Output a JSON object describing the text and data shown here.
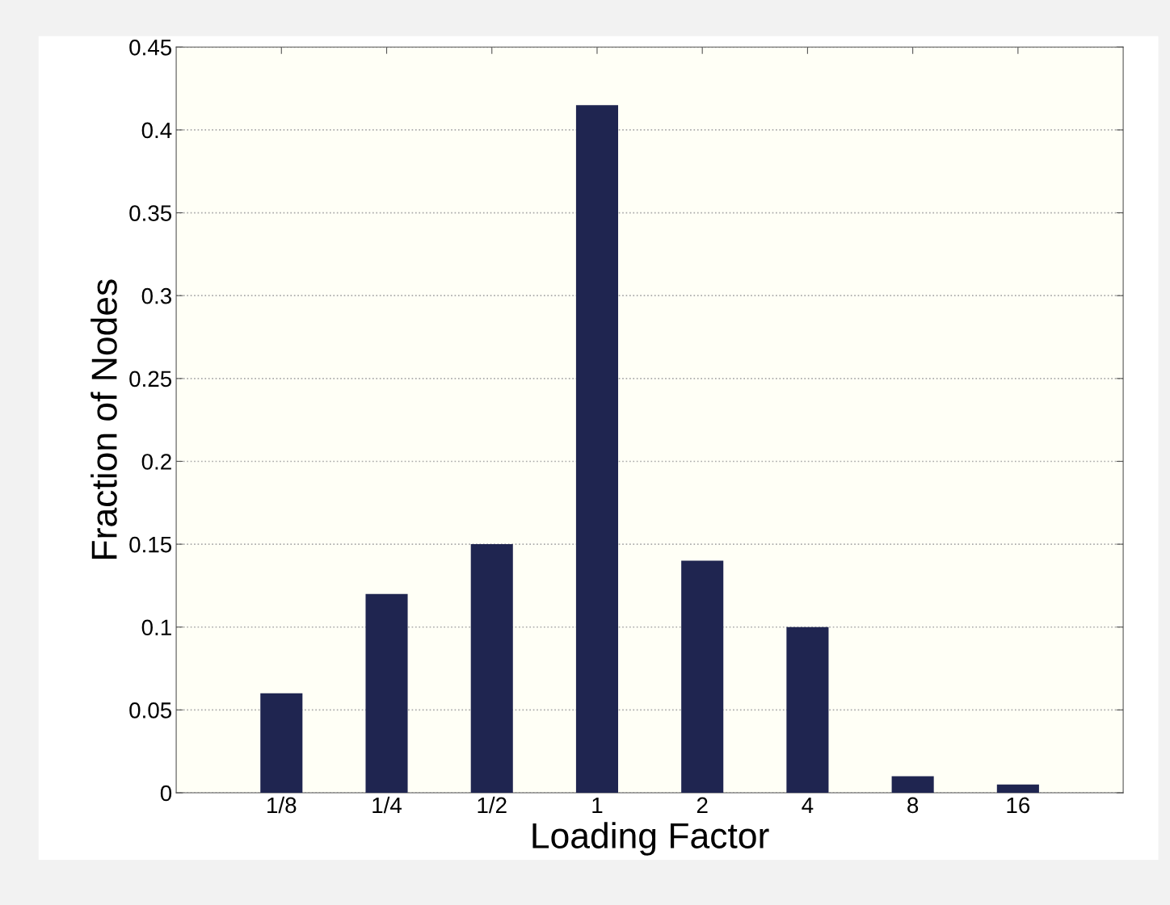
{
  "chart_data": {
    "type": "bar",
    "xlabel": "Loading Factor",
    "ylabel": "Fraction of Nodes",
    "categories": [
      "1/8",
      "1/4",
      "1/2",
      "1",
      "2",
      "4",
      "8",
      "16"
    ],
    "values": [
      0.06,
      0.12,
      0.15,
      0.415,
      0.14,
      0.1,
      0.01,
      0.005
    ],
    "color": "#1f2550",
    "ylim": [
      0,
      0.45
    ],
    "yticks": [
      0,
      0.05,
      0.1,
      0.15,
      0.2,
      0.25,
      0.3,
      0.35,
      0.4,
      0.45
    ],
    "grid": "y",
    "line_style": "dotted"
  }
}
